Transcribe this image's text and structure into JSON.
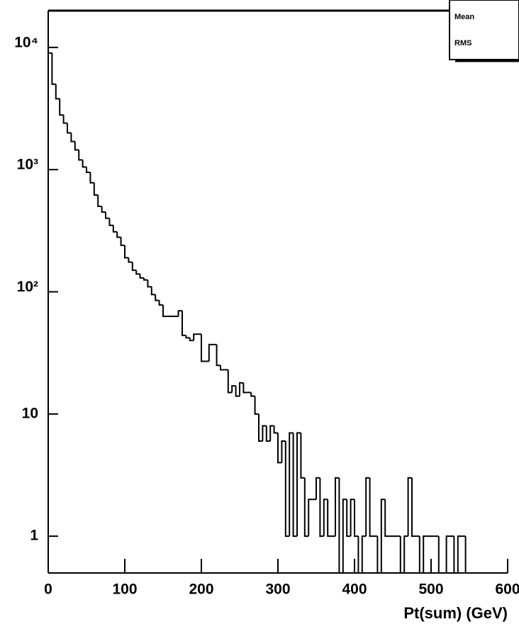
{
  "chart_data": {
    "type": "histogram",
    "xlabel": "Pt(sum) (GeV)",
    "stats": [
      "Mean",
      "RMS"
    ],
    "bins": [
      0,
      5,
      10,
      15,
      20,
      25,
      30,
      35,
      40,
      45,
      50,
      55,
      60,
      65,
      70,
      75,
      80,
      85,
      90,
      95,
      100,
      105,
      110,
      115,
      120,
      125,
      130,
      135,
      140,
      145,
      150,
      155,
      160,
      165,
      170,
      175,
      180,
      185,
      190,
      195,
      200,
      205,
      210,
      215,
      220,
      225,
      230,
      235,
      240,
      245,
      250,
      255,
      260,
      265,
      270,
      275,
      280,
      285,
      290,
      295,
      300,
      305,
      310,
      315,
      320,
      325,
      330,
      335,
      340,
      345,
      350,
      355,
      360,
      365,
      370,
      375,
      380,
      385,
      390,
      395,
      400,
      405,
      410,
      415,
      420,
      425,
      430,
      435,
      440,
      445,
      450,
      455,
      460,
      465,
      470,
      475,
      480,
      485,
      490,
      495,
      500,
      505,
      510,
      515,
      520,
      525,
      530,
      535,
      540,
      545,
      550,
      555,
      560,
      565,
      570,
      575,
      580,
      585,
      590,
      595,
      600
    ],
    "values": [
      9000,
      5000,
      3800,
      2800,
      2400,
      2000,
      1700,
      1450,
      1200,
      1050,
      950,
      780,
      620,
      500,
      450,
      400,
      350,
      310,
      280,
      240,
      190,
      175,
      150,
      140,
      130,
      125,
      110,
      95,
      85,
      78,
      63,
      63,
      63,
      63,
      70,
      44,
      42,
      40,
      45,
      45,
      27,
      27,
      37,
      37,
      25,
      23,
      23,
      15,
      17,
      14,
      18,
      15,
      15,
      14,
      10,
      6,
      8,
      6,
      8,
      7,
      4,
      6,
      1,
      7,
      1,
      7,
      3,
      1,
      2,
      2,
      3,
      1,
      2,
      1,
      1,
      3,
      0,
      2,
      1,
      2,
      1,
      0,
      1,
      3,
      1,
      1,
      0,
      2,
      1,
      1,
      1,
      1,
      0,
      1,
      3,
      1,
      1,
      0,
      1,
      1,
      1,
      1,
      0,
      0,
      1,
      1,
      0,
      1,
      1,
      0,
      0,
      0,
      0,
      0,
      0,
      0,
      0,
      0,
      0,
      0
    ],
    "color": "#000000",
    "xlim": [
      0,
      600
    ],
    "xticks": [
      0,
      100,
      200,
      300,
      400,
      500,
      600
    ],
    "ylim": [
      0.5,
      20000
    ],
    "log_y": true,
    "yticks": [
      1,
      10,
      {
        "value": 100,
        "label": "10²"
      },
      {
        "value": 1000,
        "label": "10³"
      },
      {
        "value": 10000,
        "label": "10⁴"
      }
    ]
  }
}
